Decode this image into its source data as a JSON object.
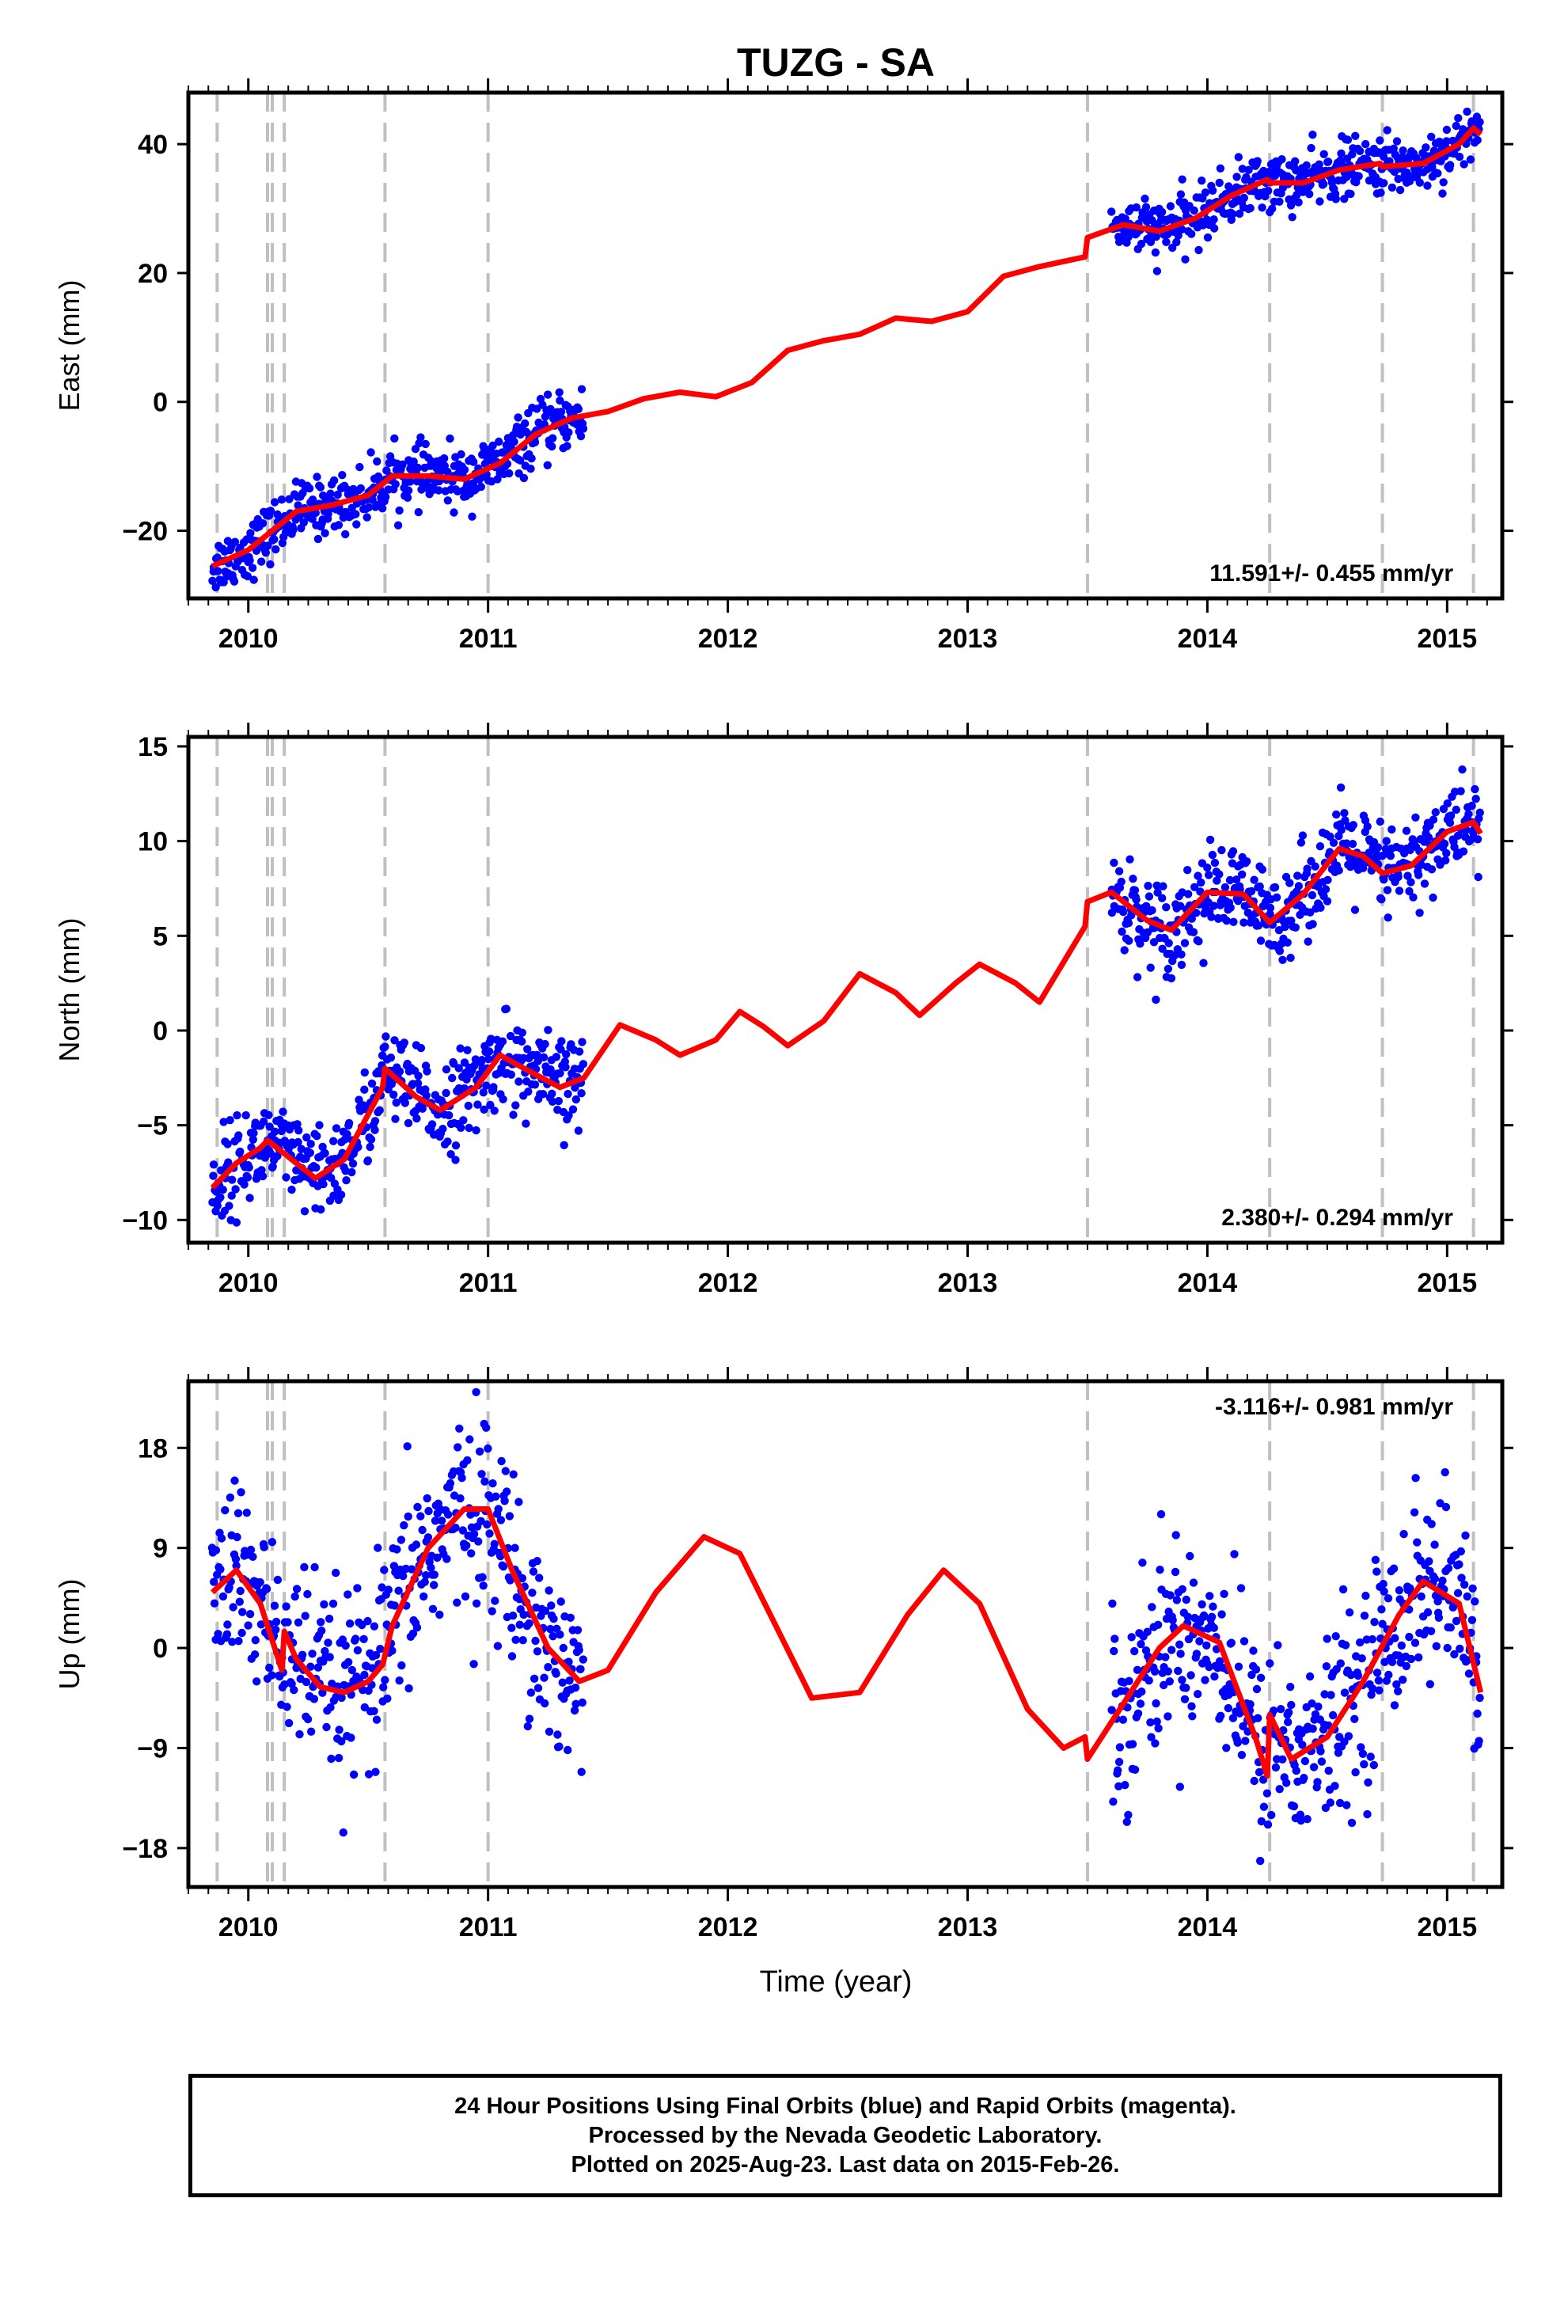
{
  "title": "TUZG - SA",
  "x_label": "Time (year)",
  "footer": {
    "line1": "24 Hour Positions Using Final Orbits (blue) and Rapid Orbits (magenta).",
    "line2": "Processed by the Nevada Geodetic Laboratory.",
    "line3": "Plotted on 2025-Aug-23. Last data on 2015-Feb-26."
  },
  "colors": {
    "data_points": "#0000ff",
    "model_fit": "#ff0000",
    "event_lines": "#c0c0c0",
    "axes": "#000000"
  },
  "chart_data": [
    {
      "type": "scatter",
      "ylabel": "East (mm)",
      "xlim": [
        2009.75,
        2015.23
      ],
      "ylim": [
        -30.5,
        48
      ],
      "yticks": [
        -20,
        0,
        20,
        40
      ],
      "xticks": [
        2010,
        2011,
        2012,
        2013,
        2014,
        2015
      ],
      "grid": false,
      "event_lines": [
        2009.87,
        2010.08,
        2010.1,
        2010.15,
        2010.57,
        2011.0,
        2013.5,
        2014.26,
        2014.73,
        2015.11
      ],
      "rate_label": "11.591+/- 0.455 mm/yr",
      "rate_position": "bottom-right",
      "series": [
        {
          "kind": "points",
          "segments": [
            [
              2009.85,
              2011.4
            ],
            [
              2013.6,
              2015.14
            ]
          ],
          "scatter": 2.2
        },
        {
          "kind": "model",
          "x": [
            2009.85,
            2010.0,
            2010.1,
            2010.2,
            2010.35,
            2010.5,
            2010.6,
            2010.75,
            2010.9,
            2011.05,
            2011.2,
            2011.35,
            2011.5,
            2011.65,
            2011.8,
            2011.95,
            2012.1,
            2012.25,
            2012.4,
            2012.55,
            2012.7,
            2012.85,
            2013.0,
            2013.15,
            2013.3,
            2013.49,
            2013.5,
            2013.65,
            2013.8,
            2013.95,
            2014.1,
            2014.25,
            2014.26,
            2014.4,
            2014.55,
            2014.72,
            2014.73,
            2014.9,
            2015.05,
            2015.11,
            2015.14
          ],
          "y": [
            -25.5,
            -23.0,
            -20.0,
            -17.0,
            -16.0,
            -14.5,
            -11.5,
            -11.5,
            -12.0,
            -9.5,
            -5.0,
            -2.5,
            -1.5,
            0.5,
            1.5,
            0.8,
            3.0,
            8.0,
            9.5,
            10.5,
            13.0,
            12.5,
            14.0,
            19.5,
            21.0,
            22.5,
            25.5,
            27.5,
            26.5,
            28.5,
            32.0,
            34.5,
            34.0,
            34.0,
            36.0,
            37.0,
            36.5,
            37.0,
            40.0,
            42.5,
            41.5
          ]
        }
      ]
    },
    {
      "type": "scatter",
      "ylabel": "North (mm)",
      "xlim": [
        2009.75,
        2015.23
      ],
      "ylim": [
        -11.2,
        15.5
      ],
      "yticks": [
        -10,
        -5,
        0,
        5,
        10,
        15
      ],
      "xticks": [
        2010,
        2011,
        2012,
        2013,
        2014,
        2015
      ],
      "grid": false,
      "event_lines": [
        2009.87,
        2010.08,
        2010.1,
        2010.15,
        2010.57,
        2011.0,
        2013.5,
        2014.26,
        2014.73,
        2015.11
      ],
      "rate_label": "2.380+/- 0.294 mm/yr",
      "rate_position": "bottom-right",
      "series": [
        {
          "kind": "points",
          "segments": [
            [
              2009.85,
              2011.4
            ],
            [
              2013.6,
              2015.14
            ]
          ],
          "scatter": 1.2
        },
        {
          "kind": "model",
          "x": [
            2009.85,
            2009.95,
            2010.05,
            2010.08,
            2010.15,
            2010.28,
            2010.4,
            2010.56,
            2010.57,
            2010.7,
            2010.8,
            2010.95,
            2011.05,
            2011.15,
            2011.3,
            2011.4,
            2011.55,
            2011.7,
            2011.8,
            2011.95,
            2012.05,
            2012.15,
            2012.25,
            2012.4,
            2012.55,
            2012.7,
            2012.8,
            2012.95,
            2013.05,
            2013.2,
            2013.3,
            2013.49,
            2013.5,
            2013.6,
            2013.75,
            2013.85,
            2014.0,
            2014.15,
            2014.26,
            2014.4,
            2014.55,
            2014.65,
            2014.73,
            2014.85,
            2015.0,
            2015.11,
            2015.14
          ],
          "y": [
            -8.3,
            -7.0,
            -6.2,
            -5.8,
            -6.5,
            -7.8,
            -6.8,
            -3.0,
            -2.0,
            -3.5,
            -4.2,
            -3.0,
            -1.3,
            -2.0,
            -3.0,
            -2.5,
            0.3,
            -0.5,
            -1.3,
            -0.5,
            1.0,
            0.2,
            -0.8,
            0.5,
            3.0,
            2.0,
            0.8,
            2.5,
            3.5,
            2.5,
            1.5,
            5.5,
            6.8,
            7.3,
            5.8,
            5.3,
            7.3,
            7.2,
            5.7,
            7.2,
            9.6,
            9.2,
            8.3,
            8.7,
            10.5,
            11.0,
            10.4
          ]
        }
      ]
    },
    {
      "type": "scatter",
      "ylabel": "Up (mm)",
      "xlim": [
        2009.75,
        2015.23
      ],
      "ylim": [
        -21.5,
        24
      ],
      "yticks": [
        -18,
        -9,
        0,
        9,
        18
      ],
      "xticks": [
        2010,
        2011,
        2012,
        2013,
        2014,
        2015
      ],
      "xlabel": "Time (year)",
      "grid": false,
      "event_lines": [
        2009.87,
        2010.08,
        2010.1,
        2010.15,
        2010.57,
        2011.0,
        2013.5,
        2014.26,
        2014.73,
        2015.11
      ],
      "rate_label": "-3.116+/- 0.981 mm/yr",
      "rate_position": "top-right",
      "series": [
        {
          "kind": "points",
          "segments": [
            [
              2009.85,
              2011.4
            ],
            [
              2013.6,
              2015.14
            ]
          ],
          "scatter": 4.2
        },
        {
          "kind": "model",
          "x": [
            2009.85,
            2009.95,
            2010.05,
            2010.14,
            2010.15,
            2010.2,
            2010.3,
            2010.4,
            2010.5,
            2010.56,
            2010.6,
            2010.75,
            2010.9,
            2011.0,
            2011.1,
            2011.25,
            2011.38,
            2011.5,
            2011.7,
            2011.9,
            2012.05,
            2012.2,
            2012.35,
            2012.55,
            2012.75,
            2012.9,
            2013.05,
            2013.25,
            2013.4,
            2013.49,
            2013.5,
            2013.65,
            2013.8,
            2013.9,
            2014.05,
            2014.2,
            2014.25,
            2014.26,
            2014.35,
            2014.5,
            2014.65,
            2014.8,
            2014.9,
            2015.05,
            2015.14
          ],
          "y": [
            5.0,
            7.0,
            4.0,
            -2.0,
            1.5,
            -1.0,
            -3.5,
            -4.0,
            -3.0,
            -1.5,
            2.0,
            9.0,
            12.5,
            12.5,
            7.0,
            0.0,
            -3.0,
            -2.0,
            5.0,
            10.0,
            8.5,
            2.0,
            -4.5,
            -4.0,
            3.0,
            7.0,
            4.0,
            -5.5,
            -9.0,
            -8.0,
            -10.0,
            -5.0,
            0.0,
            2.0,
            0.5,
            -8.0,
            -11.5,
            -6.0,
            -10.0,
            -8.0,
            -3.0,
            3.0,
            6.0,
            4.0,
            -4.0
          ]
        }
      ]
    }
  ]
}
